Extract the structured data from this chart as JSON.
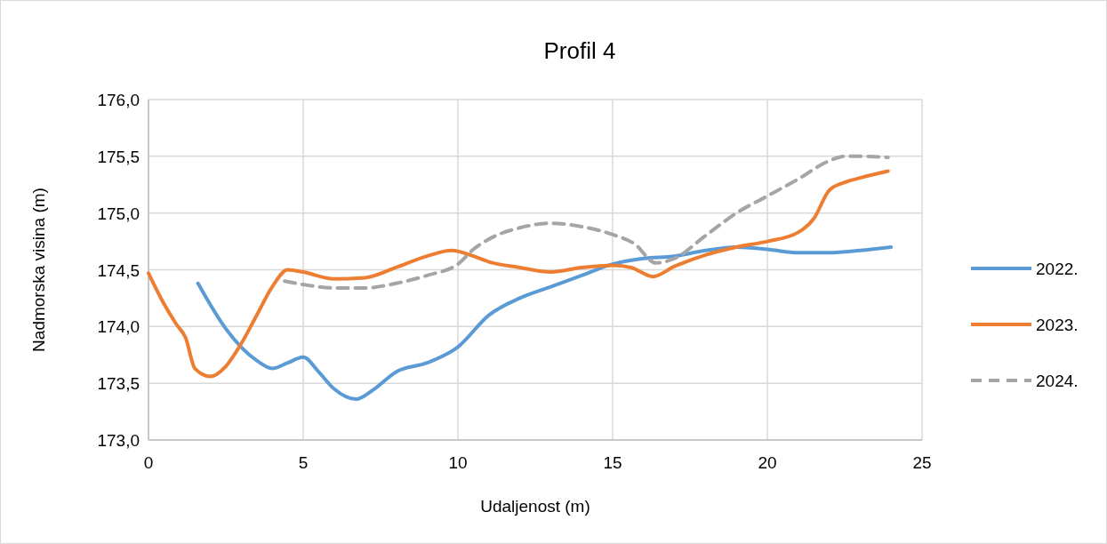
{
  "chart_data": {
    "type": "line",
    "title": "Profil 4",
    "xlabel": "Udaljenost (m)",
    "ylabel": "Nadmorska visina (m)",
    "xlim": [
      0,
      25
    ],
    "xticks": [
      0,
      5,
      10,
      15,
      20,
      25
    ],
    "ylim": [
      173,
      176
    ],
    "yticks": [
      {
        "value": 173,
        "label": "173,0"
      },
      {
        "value": 173.5,
        "label": "173,5"
      },
      {
        "value": 174,
        "label": "174,0"
      },
      {
        "value": 174.5,
        "label": "174,5"
      },
      {
        "value": 175,
        "label": "175,0"
      },
      {
        "value": 175.5,
        "label": "175,5"
      },
      {
        "value": 176,
        "label": "176,0"
      }
    ],
    "grid": true,
    "legend": "right",
    "marker": "none",
    "series": [
      {
        "name": "2022.",
        "color": "#5b9bd5",
        "line_style": "solid",
        "x": [
          1.6,
          2.5,
          3.5,
          4,
          4.5,
          5,
          5.5,
          6,
          6.7,
          7.3,
          8,
          9,
          10,
          11,
          12,
          13,
          14,
          15,
          16,
          17,
          18,
          19,
          20,
          21,
          22,
          23,
          24
        ],
        "values": [
          174.38,
          173.98,
          173.7,
          173.63,
          173.68,
          173.73,
          173.6,
          173.45,
          173.36,
          173.45,
          173.6,
          173.68,
          173.82,
          174.1,
          174.25,
          174.35,
          174.45,
          174.55,
          174.6,
          174.62,
          174.67,
          174.7,
          174.68,
          174.65,
          174.65,
          174.67,
          174.7
        ]
      },
      {
        "name": "2023.",
        "color": "#ed7d31",
        "line_style": "solid",
        "x": [
          0,
          0.5,
          0.9,
          1.2,
          1.5,
          2,
          2.5,
          3,
          3.5,
          4,
          4.5,
          5,
          6,
          7,
          8,
          9,
          9.8,
          10.5,
          11,
          12,
          13,
          14,
          15,
          15.6,
          16.3,
          17,
          18,
          19,
          20,
          21,
          21.5,
          22,
          22.5,
          23,
          23.9
        ],
        "values": [
          174.47,
          174.2,
          174.02,
          173.9,
          173.63,
          173.56,
          173.65,
          173.85,
          174.1,
          174.35,
          174.5,
          174.48,
          174.42,
          174.43,
          174.52,
          174.62,
          174.67,
          174.62,
          174.57,
          174.52,
          174.48,
          174.52,
          174.54,
          174.52,
          174.44,
          174.53,
          174.63,
          174.7,
          174.75,
          174.83,
          174.95,
          175.2,
          175.27,
          175.31,
          175.37
        ]
      },
      {
        "name": "2024.",
        "color": "#a5a5a5",
        "line_style": "dashed",
        "x": [
          4.4,
          5,
          6,
          7,
          8,
          9,
          10,
          10.5,
          11,
          12,
          13,
          14,
          15,
          15.7,
          16.4,
          17,
          18,
          19,
          20,
          21,
          22,
          22.5,
          23,
          23.9
        ],
        "values": [
          174.4,
          174.37,
          174.34,
          174.34,
          174.38,
          174.45,
          174.55,
          174.68,
          174.77,
          174.87,
          174.91,
          174.88,
          174.81,
          174.73,
          174.56,
          174.6,
          174.8,
          175.0,
          175.15,
          175.3,
          175.46,
          175.5,
          175.5,
          175.49
        ]
      }
    ]
  }
}
